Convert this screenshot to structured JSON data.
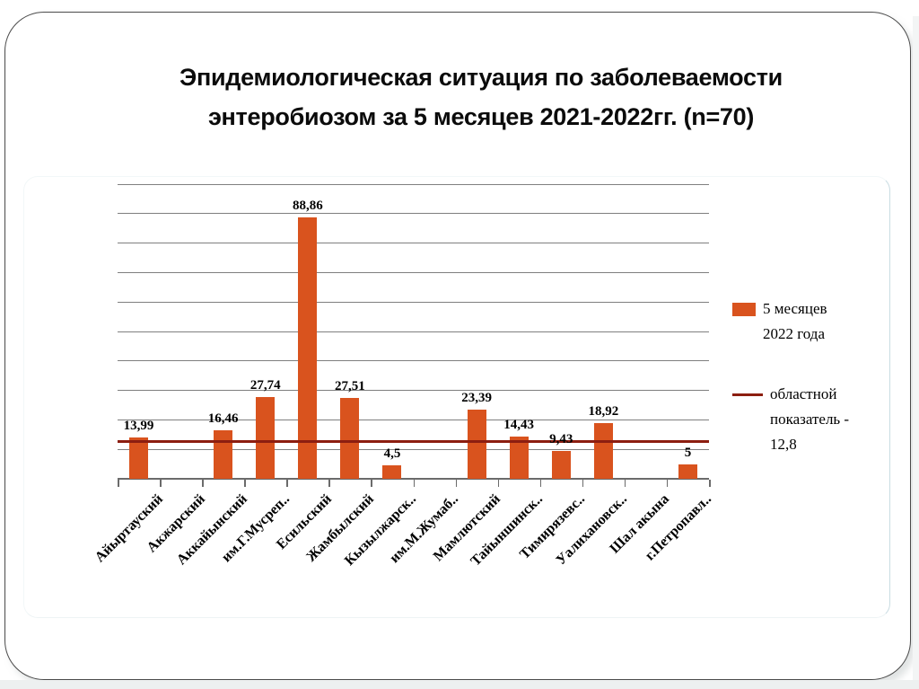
{
  "slide": {
    "title_lines": [
      "Эпидемиологическая ситуация по заболеваемости",
      "энтеробиозом за 5 месяцев 2021-2022гг. (n=70)"
    ]
  },
  "colors": {
    "bar": "#d9531e",
    "reference_line": "#8c1e10",
    "gridline": "#7f7f7f",
    "axis": "#6b6b6b",
    "text": "#000000",
    "slide_border": "#4a4a4a"
  },
  "legend": {
    "items": [
      {
        "marker": "bar-swatch",
        "lines": [
          "5 месяцев",
          "2022 года"
        ]
      },
      {
        "marker": "line-swatch",
        "lines": [
          "областной",
          "показатель -",
          "12,8"
        ]
      }
    ]
  },
  "chart_data": {
    "type": "bar",
    "title": "Эпидемиологическая ситуация по заболеваемости энтеробиозом за 5 месяцев 2021-2022гг. (n=70)",
    "categories": [
      "Айыртауский",
      "Акжарский",
      "Аккайынский",
      "им.Г.Мусреп..",
      "Есильский",
      "Жамбылский",
      "Кызылжарск..",
      "им.М.Жумаб..",
      "Мамлютский",
      "Тайыншинск..",
      "Тимирязевс..",
      "Уалихановск..",
      "Шал акына",
      "г.Петропавл.."
    ],
    "series": [
      {
        "name": "5 месяцев 2022 года",
        "color": "#d9531e",
        "values": [
          13.99,
          null,
          16.46,
          27.74,
          88.86,
          27.51,
          4.5,
          null,
          23.39,
          14.43,
          9.43,
          18.92,
          null,
          5
        ],
        "labels": [
          "13,99",
          "",
          "16,46",
          "27,74",
          "88,86",
          "27,51",
          "4,5",
          "",
          "23,39",
          "14,43",
          "9,43",
          "18,92",
          "",
          "5"
        ]
      }
    ],
    "reference_line": {
      "name": "областной показатель - 12,8",
      "value": 12.8,
      "color": "#8c1e10"
    },
    "ylim": [
      0,
      100
    ],
    "grid_step": 10,
    "grid": true,
    "y_axis_tick_labels": "none",
    "legend_position": "right",
    "xlabel": "",
    "ylabel": ""
  }
}
